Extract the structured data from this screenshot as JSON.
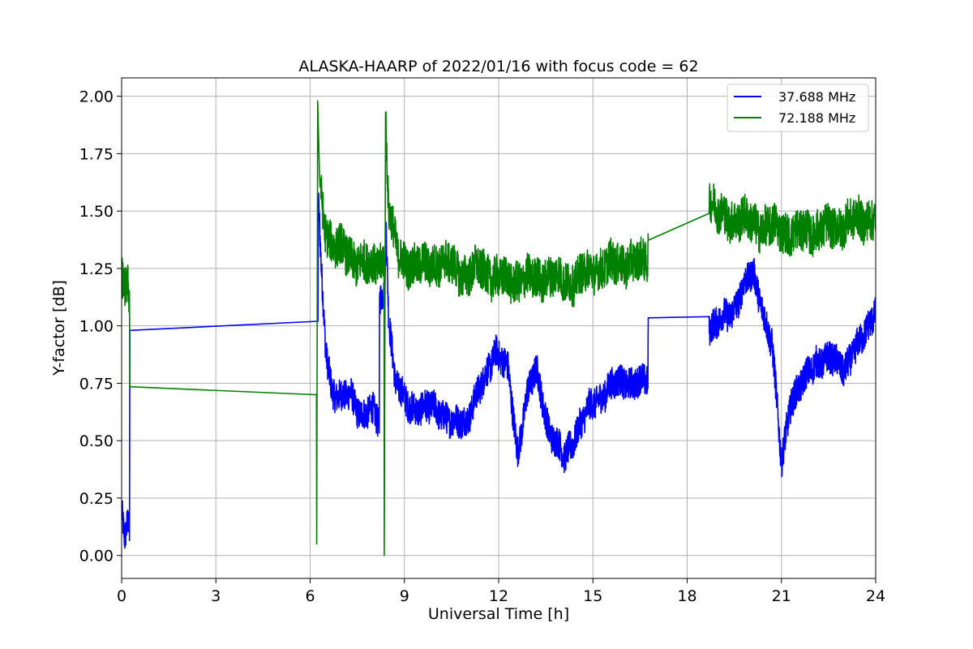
{
  "chart_data": {
    "type": "line",
    "title": "ALASKA-HAARP of 2022/01/16 with focus code = 62",
    "xlabel": "Universal Time [h]",
    "ylabel": "Y-factor [dB]",
    "xlim": [
      0,
      24
    ],
    "ylim": [
      -0.1,
      2.08
    ],
    "xticks": [
      0,
      3,
      6,
      9,
      12,
      15,
      18,
      21,
      24
    ],
    "xtick_labels": [
      "0",
      "3",
      "6",
      "9",
      "12",
      "15",
      "18",
      "21",
      "24"
    ],
    "yticks": [
      0.0,
      0.25,
      0.5,
      0.75,
      1.0,
      1.25,
      1.5,
      1.75,
      2.0
    ],
    "ytick_labels": [
      "0.00",
      "0.25",
      "0.50",
      "0.75",
      "1.00",
      "1.25",
      "1.50",
      "1.75",
      "2.00"
    ],
    "grid": true,
    "legend_position": "top-right",
    "series": [
      {
        "name": "37.688 MHz",
        "color": "#0000ff",
        "noise": 0.07,
        "points": [
          [
            0.0,
            0.2
          ],
          [
            0.05,
            0.12
          ],
          [
            0.1,
            0.05
          ],
          [
            0.15,
            0.1
          ],
          [
            0.2,
            0.15
          ],
          [
            0.25,
            0.1
          ],
          [
            0.26,
            0.98
          ],
          [
            6.25,
            1.02
          ],
          [
            6.26,
            1.55
          ],
          [
            6.35,
            1.25
          ],
          [
            6.5,
            0.9
          ],
          [
            6.7,
            0.72
          ],
          [
            7.0,
            0.68
          ],
          [
            7.3,
            0.7
          ],
          [
            7.6,
            0.62
          ],
          [
            8.0,
            0.62
          ],
          [
            8.2,
            0.58
          ],
          [
            8.21,
            1.12
          ],
          [
            8.38,
            1.15
          ],
          [
            8.42,
            1.45
          ],
          [
            8.5,
            1.05
          ],
          [
            8.7,
            0.75
          ],
          [
            9.0,
            0.68
          ],
          [
            9.5,
            0.63
          ],
          [
            10.0,
            0.65
          ],
          [
            10.5,
            0.57
          ],
          [
            11.0,
            0.6
          ],
          [
            11.5,
            0.75
          ],
          [
            11.9,
            0.9
          ],
          [
            12.3,
            0.8
          ],
          [
            12.6,
            0.45
          ],
          [
            12.9,
            0.7
          ],
          [
            13.2,
            0.8
          ],
          [
            13.6,
            0.55
          ],
          [
            14.1,
            0.42
          ],
          [
            14.5,
            0.55
          ],
          [
            15.0,
            0.66
          ],
          [
            15.5,
            0.73
          ],
          [
            16.0,
            0.76
          ],
          [
            16.5,
            0.75
          ],
          [
            16.75,
            0.76
          ],
          [
            16.76,
            1.03
          ],
          [
            18.7,
            1.04
          ],
          [
            18.71,
            1.0
          ],
          [
            19.0,
            1.02
          ],
          [
            19.4,
            1.05
          ],
          [
            19.8,
            1.18
          ],
          [
            20.1,
            1.22
          ],
          [
            20.4,
            1.08
          ],
          [
            20.7,
            0.92
          ],
          [
            21.0,
            0.4
          ],
          [
            21.3,
            0.68
          ],
          [
            21.7,
            0.75
          ],
          [
            22.1,
            0.85
          ],
          [
            22.6,
            0.85
          ],
          [
            23.0,
            0.82
          ],
          [
            23.5,
            0.92
          ],
          [
            24.0,
            1.08
          ]
        ]
      },
      {
        "name": "72.188 MHz",
        "color": "#008000",
        "noise": 0.09,
        "points": [
          [
            0.0,
            1.2
          ],
          [
            0.1,
            1.13
          ],
          [
            0.2,
            1.18
          ],
          [
            0.25,
            1.12
          ],
          [
            0.26,
            0.735
          ],
          [
            6.2,
            0.7
          ],
          [
            6.21,
            0.05
          ],
          [
            6.24,
            1.98
          ],
          [
            6.3,
            1.65
          ],
          [
            6.45,
            1.45
          ],
          [
            6.7,
            1.35
          ],
          [
            7.0,
            1.33
          ],
          [
            7.5,
            1.28
          ],
          [
            8.0,
            1.26
          ],
          [
            8.35,
            1.3
          ],
          [
            8.36,
            0.0
          ],
          [
            8.4,
            1.93
          ],
          [
            8.5,
            1.5
          ],
          [
            8.8,
            1.3
          ],
          [
            9.5,
            1.25
          ],
          [
            10.0,
            1.28
          ],
          [
            10.5,
            1.26
          ],
          [
            11.0,
            1.22
          ],
          [
            11.5,
            1.25
          ],
          [
            12.0,
            1.2
          ],
          [
            12.5,
            1.2
          ],
          [
            13.0,
            1.2
          ],
          [
            13.5,
            1.22
          ],
          [
            14.0,
            1.2
          ],
          [
            14.5,
            1.2
          ],
          [
            15.0,
            1.25
          ],
          [
            15.5,
            1.26
          ],
          [
            16.0,
            1.28
          ],
          [
            16.5,
            1.27
          ],
          [
            16.75,
            1.3
          ],
          [
            16.76,
            1.48
          ],
          [
            18.7,
            1.49
          ],
          [
            18.71,
            1.55
          ],
          [
            19.0,
            1.48
          ],
          [
            19.5,
            1.47
          ],
          [
            20.0,
            1.45
          ],
          [
            20.5,
            1.43
          ],
          [
            21.0,
            1.42
          ],
          [
            21.5,
            1.4
          ],
          [
            22.0,
            1.42
          ],
          [
            22.5,
            1.42
          ],
          [
            23.0,
            1.45
          ],
          [
            23.5,
            1.46
          ],
          [
            24.0,
            1.48
          ]
        ]
      }
    ]
  }
}
